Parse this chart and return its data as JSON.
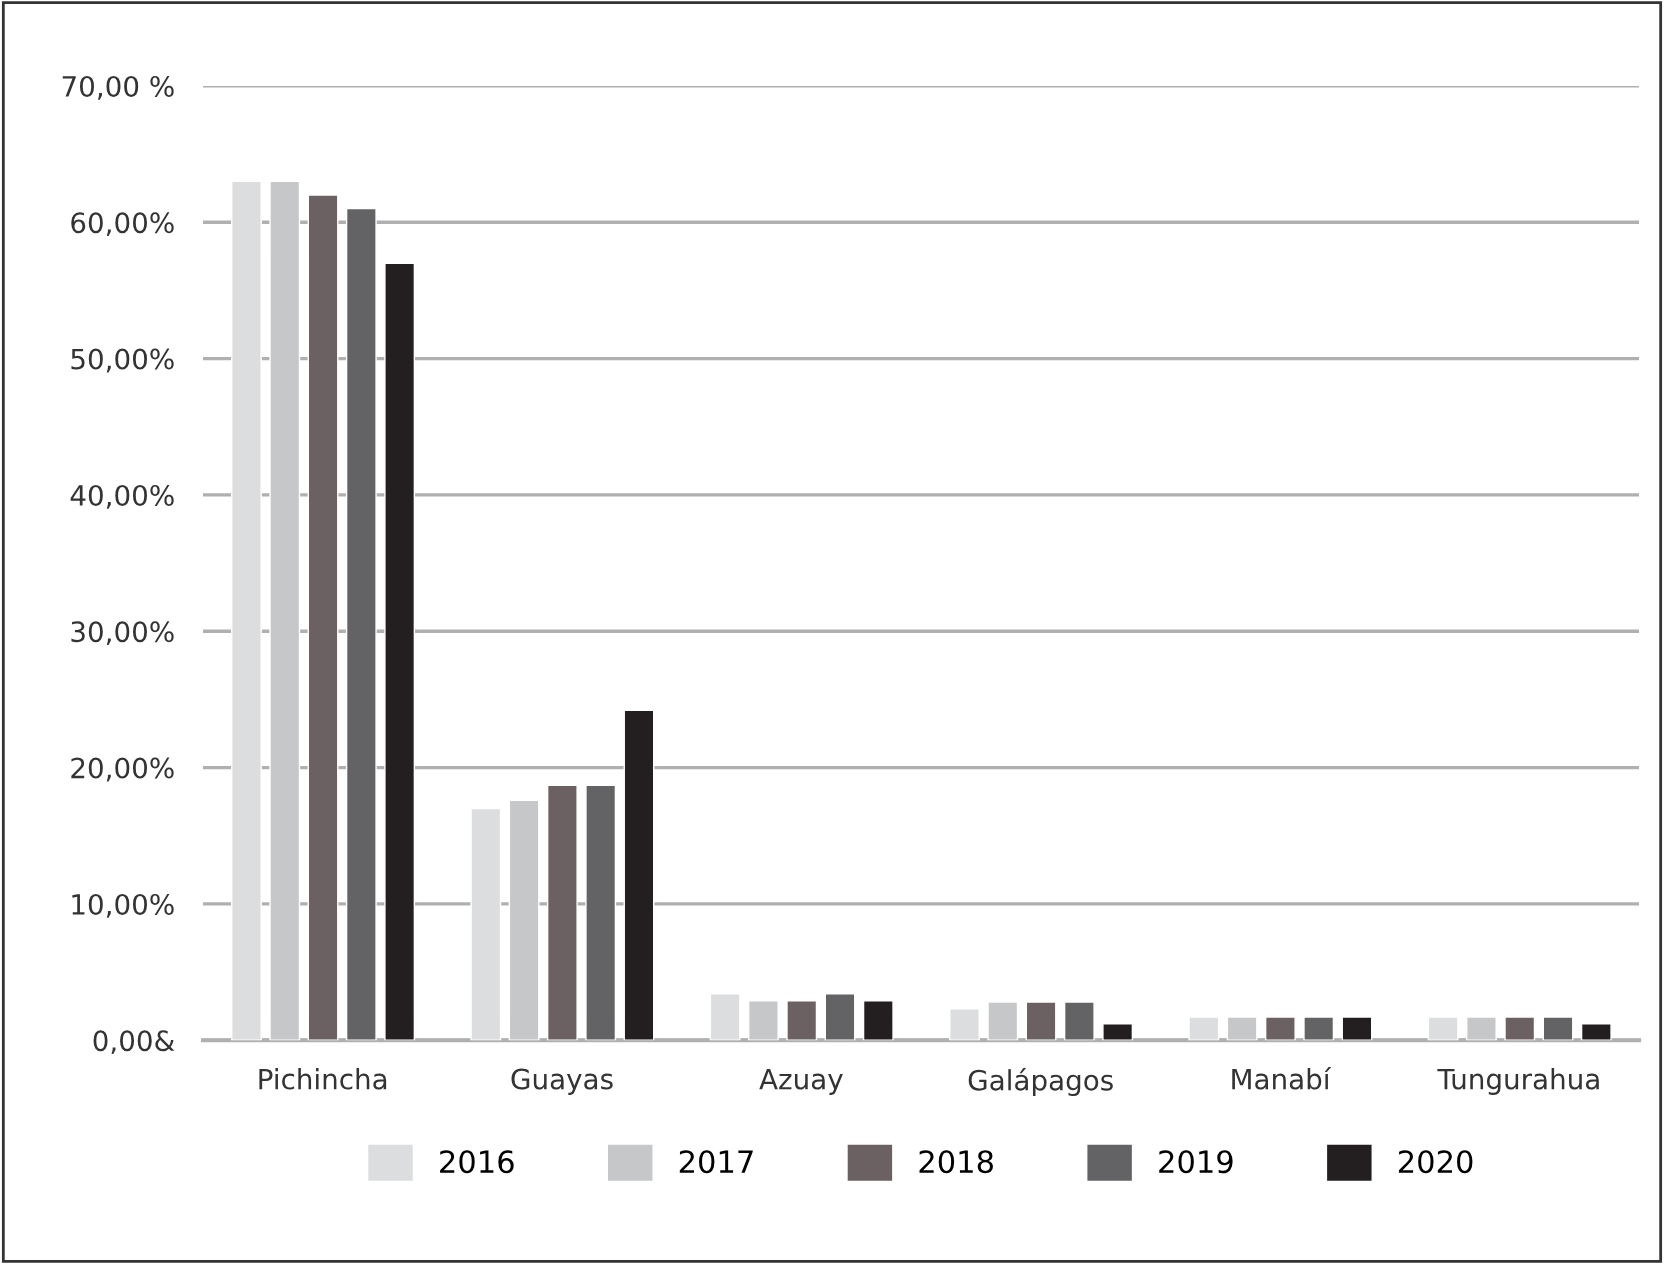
{
  "chart_data": {
    "type": "bar",
    "categories": [
      "Pichincha",
      "Guayas",
      "Azuay",
      "Galápagos",
      "Manabí",
      "Tungurahua"
    ],
    "series": [
      {
        "name": "2016",
        "color": "#dcdddf",
        "values": [
          63,
          17.0,
          3.4,
          2.3,
          1.7,
          1.7
        ]
      },
      {
        "name": "2017",
        "color": "#c6c7c9",
        "values": [
          63,
          17.6,
          2.9,
          2.8,
          1.7,
          1.7
        ]
      },
      {
        "name": "2018",
        "color": "#6b6162",
        "values": [
          62,
          18.7,
          2.9,
          2.8,
          1.7,
          1.7
        ]
      },
      {
        "name": "2019",
        "color": "#636365",
        "values": [
          61,
          18.7,
          3.4,
          2.8,
          1.7,
          1.7
        ]
      },
      {
        "name": "2020",
        "color": "#231f20",
        "values": [
          57,
          24.2,
          2.9,
          1.2,
          1.7,
          1.2
        ]
      }
    ],
    "ylim": [
      0,
      70
    ],
    "yticks": [
      {
        "value": 0,
        "label": "0,00&"
      },
      {
        "value": 10,
        "label": "10,00%"
      },
      {
        "value": 20,
        "label": "20,00%"
      },
      {
        "value": 30,
        "label": "30,00%"
      },
      {
        "value": 40,
        "label": "40,00%"
      },
      {
        "value": 50,
        "label": "50,00%"
      },
      {
        "value": 60,
        "label": "60,00%"
      },
      {
        "value": 70,
        "label": "70,00 %"
      }
    ],
    "grid": "y",
    "legend": "bottom"
  }
}
